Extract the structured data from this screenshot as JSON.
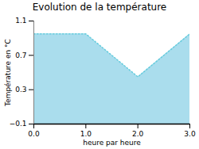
{
  "chart_data": {
    "type": "area",
    "title": "Evolution de la température",
    "xlabel": "heure par heure",
    "ylabel": "Température en °C",
    "x": [
      0,
      1,
      2,
      3
    ],
    "values": [
      0.95,
      0.95,
      0.45,
      0.95
    ],
    "xlim": [
      0,
      3
    ],
    "ylim": [
      -0.1,
      1.1
    ],
    "xticks": [
      0,
      1,
      2,
      3
    ],
    "yticks": [
      -0.1,
      0.3,
      0.7,
      1.1
    ],
    "colors": [
      "#aadded",
      "#66ccdd"
    ],
    "line_style": "dotted"
  }
}
